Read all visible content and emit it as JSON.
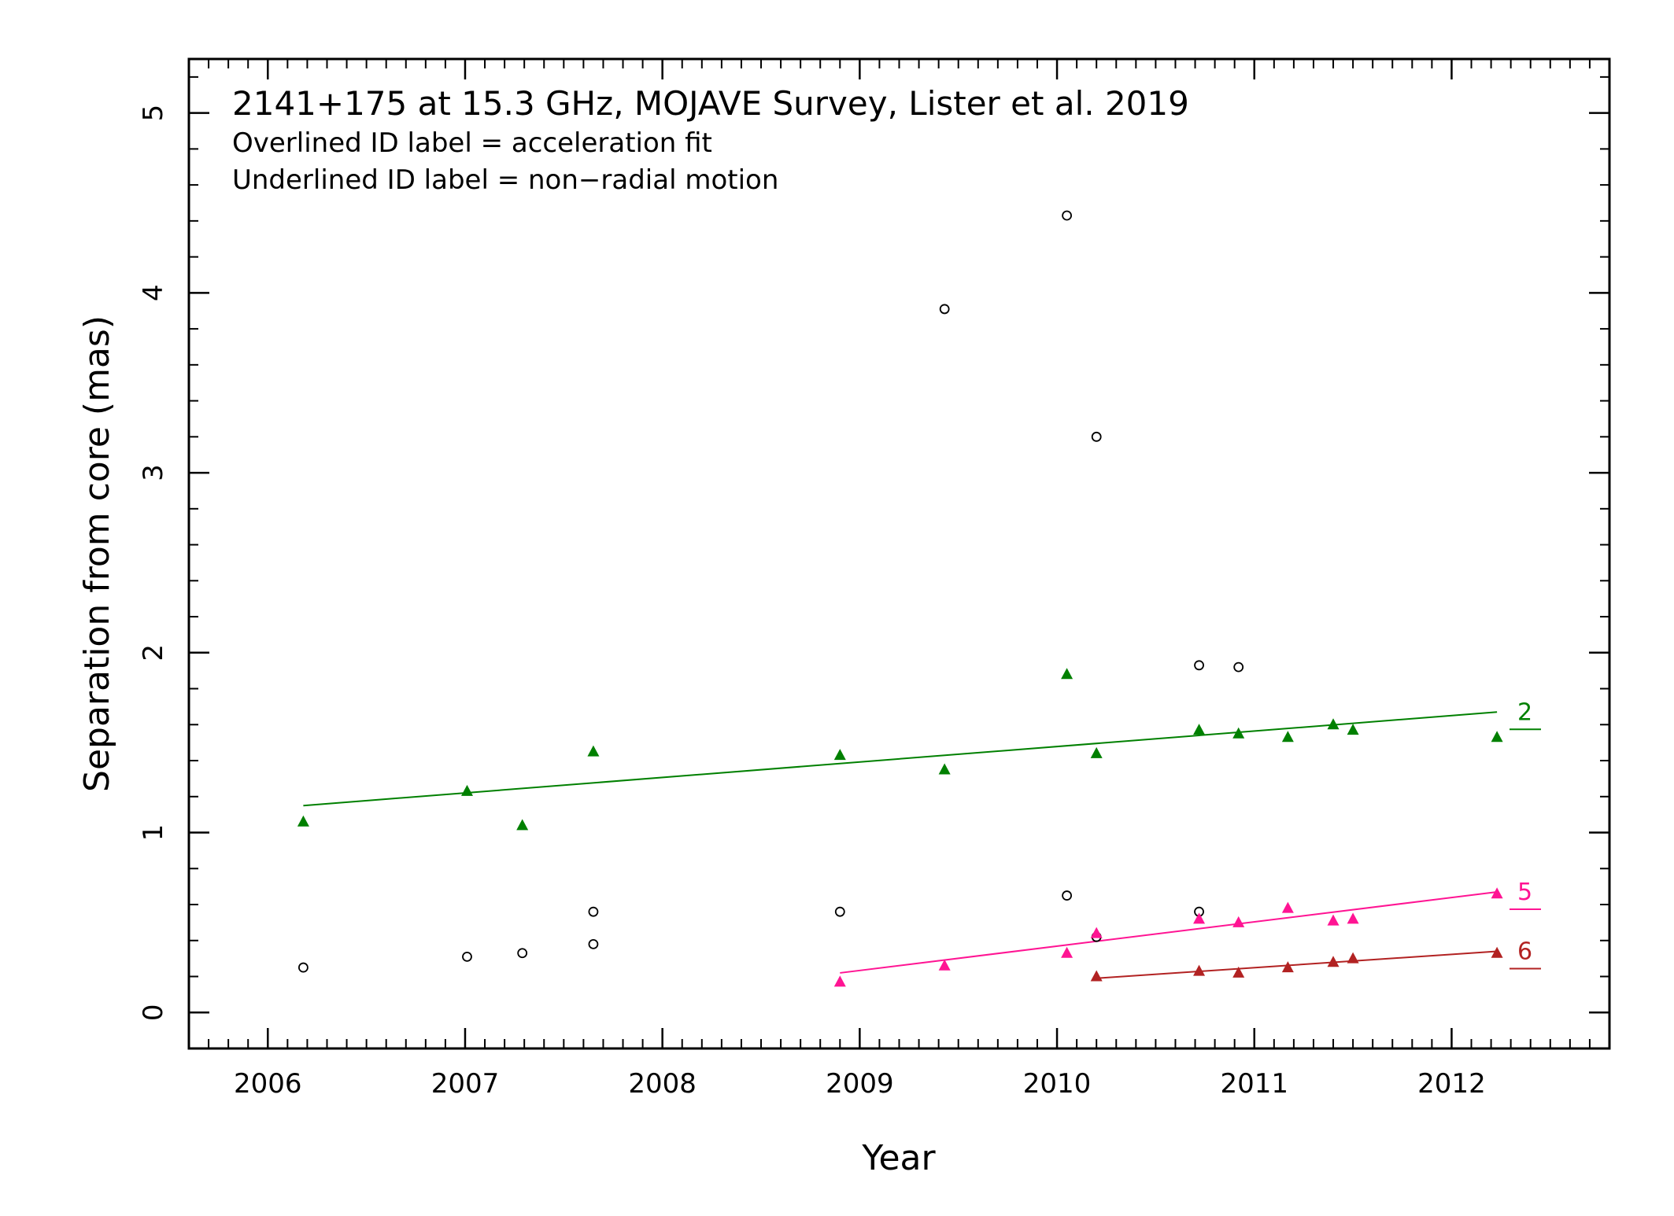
{
  "chart_data": {
    "type": "scatter",
    "title": "2141+175 at 15.3 GHz, MOJAVE Survey, Lister et al. 2019",
    "notes": [
      "Overlined ID label = acceleration fit",
      "Underlined ID label = non−radial motion"
    ],
    "xlabel": "Year",
    "ylabel": "Separation from core (mas)",
    "xlim": [
      2005.6,
      2012.8
    ],
    "ylim": [
      -0.2,
      5.3
    ],
    "xticks": [
      "2006",
      "2007",
      "2008",
      "2009",
      "2010",
      "2011",
      "2012"
    ],
    "yticks": [
      "0",
      "1",
      "2",
      "3",
      "4",
      "5"
    ],
    "grid": false,
    "unassigned": {
      "name": "",
      "marker": "open-circle",
      "color": "#000000",
      "points": [
        [
          2006.18,
          0.25
        ],
        [
          2007.01,
          0.31
        ],
        [
          2007.29,
          0.33
        ],
        [
          2007.65,
          0.38
        ],
        [
          2007.65,
          0.56
        ],
        [
          2008.9,
          0.56
        ],
        [
          2009.43,
          3.91
        ],
        [
          2010.05,
          4.43
        ],
        [
          2010.05,
          0.65
        ],
        [
          2010.2,
          3.2
        ],
        [
          2010.2,
          0.42
        ],
        [
          2010.72,
          1.93
        ],
        [
          2010.72,
          0.56
        ],
        [
          2010.92,
          1.92
        ]
      ]
    },
    "series": [
      {
        "id": "2",
        "color": "#008000",
        "marker": "filled-triangle",
        "underlined": true,
        "points": [
          [
            2006.18,
            1.06
          ],
          [
            2007.01,
            1.23
          ],
          [
            2007.29,
            1.04
          ],
          [
            2007.65,
            1.45
          ],
          [
            2008.9,
            1.43
          ],
          [
            2009.43,
            1.35
          ],
          [
            2010.05,
            1.88
          ],
          [
            2010.2,
            1.44
          ],
          [
            2010.72,
            1.57
          ],
          [
            2010.92,
            1.55
          ],
          [
            2011.17,
            1.53
          ],
          [
            2011.4,
            1.6
          ],
          [
            2011.5,
            1.57
          ],
          [
            2012.23,
            1.53
          ]
        ],
        "fit": [
          [
            2006.18,
            1.15
          ],
          [
            2012.23,
            1.67
          ]
        ]
      },
      {
        "id": "5",
        "color": "#ff1493",
        "marker": "filled-triangle",
        "underlined": true,
        "points": [
          [
            2008.9,
            0.17
          ],
          [
            2009.43,
            0.26
          ],
          [
            2010.05,
            0.33
          ],
          [
            2010.2,
            0.44
          ],
          [
            2010.72,
            0.52
          ],
          [
            2010.92,
            0.5
          ],
          [
            2011.17,
            0.58
          ],
          [
            2011.4,
            0.51
          ],
          [
            2011.5,
            0.52
          ],
          [
            2012.23,
            0.66
          ]
        ],
        "fit": [
          [
            2008.9,
            0.22
          ],
          [
            2012.23,
            0.67
          ]
        ]
      },
      {
        "id": "6",
        "color": "#b22222",
        "marker": "filled-triangle",
        "underlined": true,
        "points": [
          [
            2010.2,
            0.2
          ],
          [
            2010.72,
            0.23
          ],
          [
            2010.92,
            0.22
          ],
          [
            2011.17,
            0.25
          ],
          [
            2011.4,
            0.28
          ],
          [
            2011.5,
            0.3
          ],
          [
            2012.23,
            0.33
          ]
        ],
        "fit": [
          [
            2010.2,
            0.19
          ],
          [
            2012.23,
            0.34
          ]
        ]
      }
    ]
  }
}
